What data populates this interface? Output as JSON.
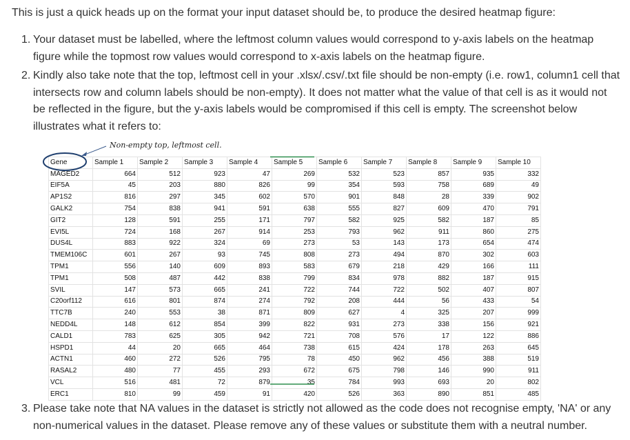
{
  "intro": "This is just a quick heads up on the format your input dataset should be, to produce the desired heatmap figure:",
  "steps": [
    {
      "num": "1.",
      "lines": [
        "Your dataset must be labelled, where the leftmost column values would correspond to y-axis labels on the heatmap",
        "figure while the topmost row values would correspond to x-axis labels on the heatmap figure."
      ]
    },
    {
      "num": "2.",
      "lines": [
        "Kindly also take note that the top, leftmost cell in your .xlsx/.csv/.txt file should be non-empty (i.e. row1, column1 cell that",
        "intersects row and column labels should be non-empty). It does not matter what the value of that cell is as it would not",
        "be reflected in the figure, but the y-axis labels would be compromised if this cell is empty. The screenshot below",
        "illustrates what it refers to:"
      ]
    },
    {
      "num": "3.",
      "lines": [
        "Please take note that NA values in the dataset is strictly not allowed as the code does not recognise empty, 'NA' or any",
        "non-numerical values in the dataset. Please remove any of these values or substitute them with a neutral number."
      ]
    }
  ],
  "annotation": "Non-empty top, leftmost cell.",
  "sheet": {
    "header": [
      "Gene",
      "Sample 1",
      "Sample 2",
      "Sample 3",
      "Sample 4",
      "Sample 5",
      "Sample 6",
      "Sample 7",
      "Sample 8",
      "Sample 9",
      "Sample 10"
    ],
    "rows": [
      [
        "MAGED2",
        "664",
        "512",
        "923",
        "47",
        "269",
        "532",
        "523",
        "857",
        "935",
        "332"
      ],
      [
        "EIF5A",
        "45",
        "203",
        "880",
        "826",
        "99",
        "354",
        "593",
        "758",
        "689",
        "49"
      ],
      [
        "AP1S2",
        "816",
        "297",
        "345",
        "602",
        "570",
        "901",
        "848",
        "28",
        "339",
        "902"
      ],
      [
        "GALK2",
        "754",
        "838",
        "941",
        "591",
        "638",
        "555",
        "827",
        "609",
        "470",
        "791"
      ],
      [
        "GIT2",
        "128",
        "591",
        "255",
        "171",
        "797",
        "582",
        "925",
        "582",
        "187",
        "85"
      ],
      [
        "EVI5L",
        "724",
        "168",
        "267",
        "914",
        "253",
        "793",
        "962",
        "911",
        "860",
        "275"
      ],
      [
        "DUS4L",
        "883",
        "922",
        "324",
        "69",
        "273",
        "53",
        "143",
        "173",
        "654",
        "474"
      ],
      [
        "TMEM106C",
        "601",
        "267",
        "93",
        "745",
        "808",
        "273",
        "494",
        "870",
        "302",
        "603"
      ],
      [
        "TPM1",
        "556",
        "140",
        "609",
        "893",
        "583",
        "679",
        "218",
        "429",
        "166",
        "111"
      ],
      [
        "TPM1",
        "508",
        "487",
        "442",
        "838",
        "799",
        "834",
        "978",
        "882",
        "187",
        "915"
      ],
      [
        "SVIL",
        "147",
        "573",
        "665",
        "241",
        "722",
        "744",
        "722",
        "502",
        "407",
        "807"
      ],
      [
        "C20orf112",
        "616",
        "801",
        "874",
        "274",
        "792",
        "208",
        "444",
        "56",
        "433",
        "54"
      ],
      [
        "TTC7B",
        "240",
        "553",
        "38",
        "871",
        "809",
        "627",
        "4",
        "325",
        "207",
        "999"
      ],
      [
        "NEDD4L",
        "148",
        "612",
        "854",
        "399",
        "822",
        "931",
        "273",
        "338",
        "156",
        "921"
      ],
      [
        "CALD1",
        "783",
        "625",
        "305",
        "942",
        "721",
        "708",
        "576",
        "17",
        "122",
        "886"
      ],
      [
        "HSPD1",
        "44",
        "20",
        "665",
        "464",
        "738",
        "615",
        "424",
        "178",
        "263",
        "645"
      ],
      [
        "ACTN1",
        "460",
        "272",
        "526",
        "795",
        "78",
        "450",
        "962",
        "456",
        "388",
        "519"
      ],
      [
        "RASAL2",
        "480",
        "77",
        "455",
        "293",
        "672",
        "675",
        "798",
        "146",
        "990",
        "911"
      ],
      [
        "VCL",
        "516",
        "481",
        "72",
        "879",
        "35",
        "784",
        "993",
        "693",
        "20",
        "802"
      ],
      [
        "ERC1",
        "810",
        "99",
        "459",
        "91",
        "420",
        "526",
        "363",
        "890",
        "851",
        "485"
      ]
    ]
  }
}
